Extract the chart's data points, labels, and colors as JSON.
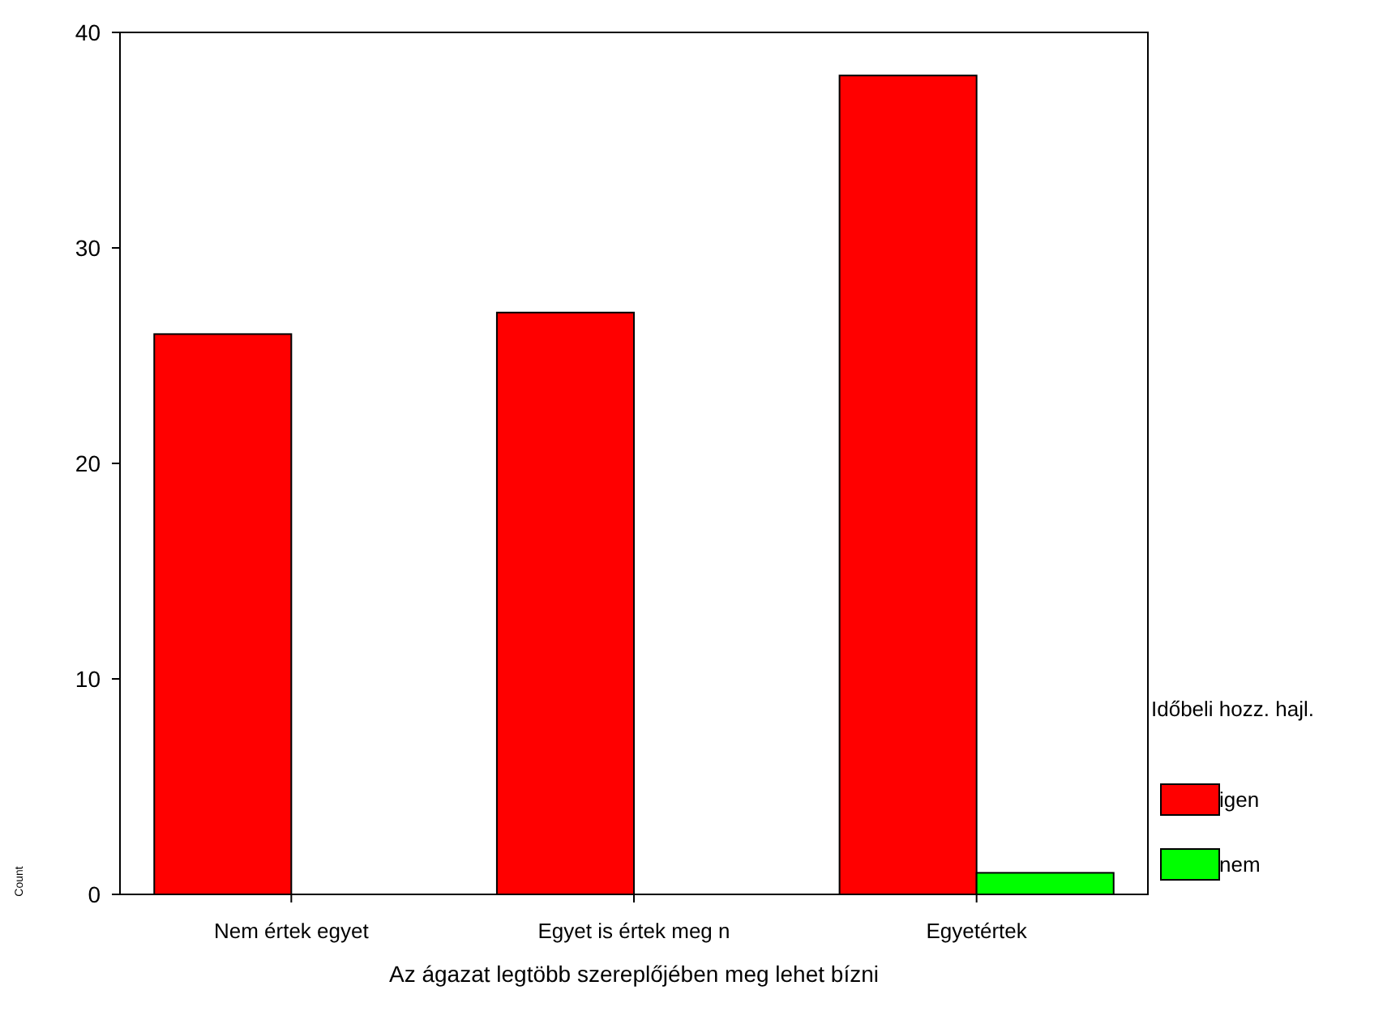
{
  "chart_data": {
    "type": "bar",
    "xlabel": "Az ágazat legtöbb szereplőjében meg lehet bízni",
    "ylabel": "Count",
    "legend_title": "Időbeli hozz. hajl.",
    "categories": [
      "Nem értek egyet",
      "Egyet is értek meg n",
      "Egyetértek"
    ],
    "series": [
      {
        "name": "igen",
        "color": "#ff0000",
        "values": [
          26,
          27,
          38
        ]
      },
      {
        "name": "nem",
        "color": "#00ff00",
        "values": [
          0,
          0,
          1
        ]
      }
    ],
    "ylim": [
      0,
      40
    ],
    "yticks": [
      0,
      10,
      20,
      30,
      40
    ],
    "grid": false,
    "legend": "right"
  }
}
